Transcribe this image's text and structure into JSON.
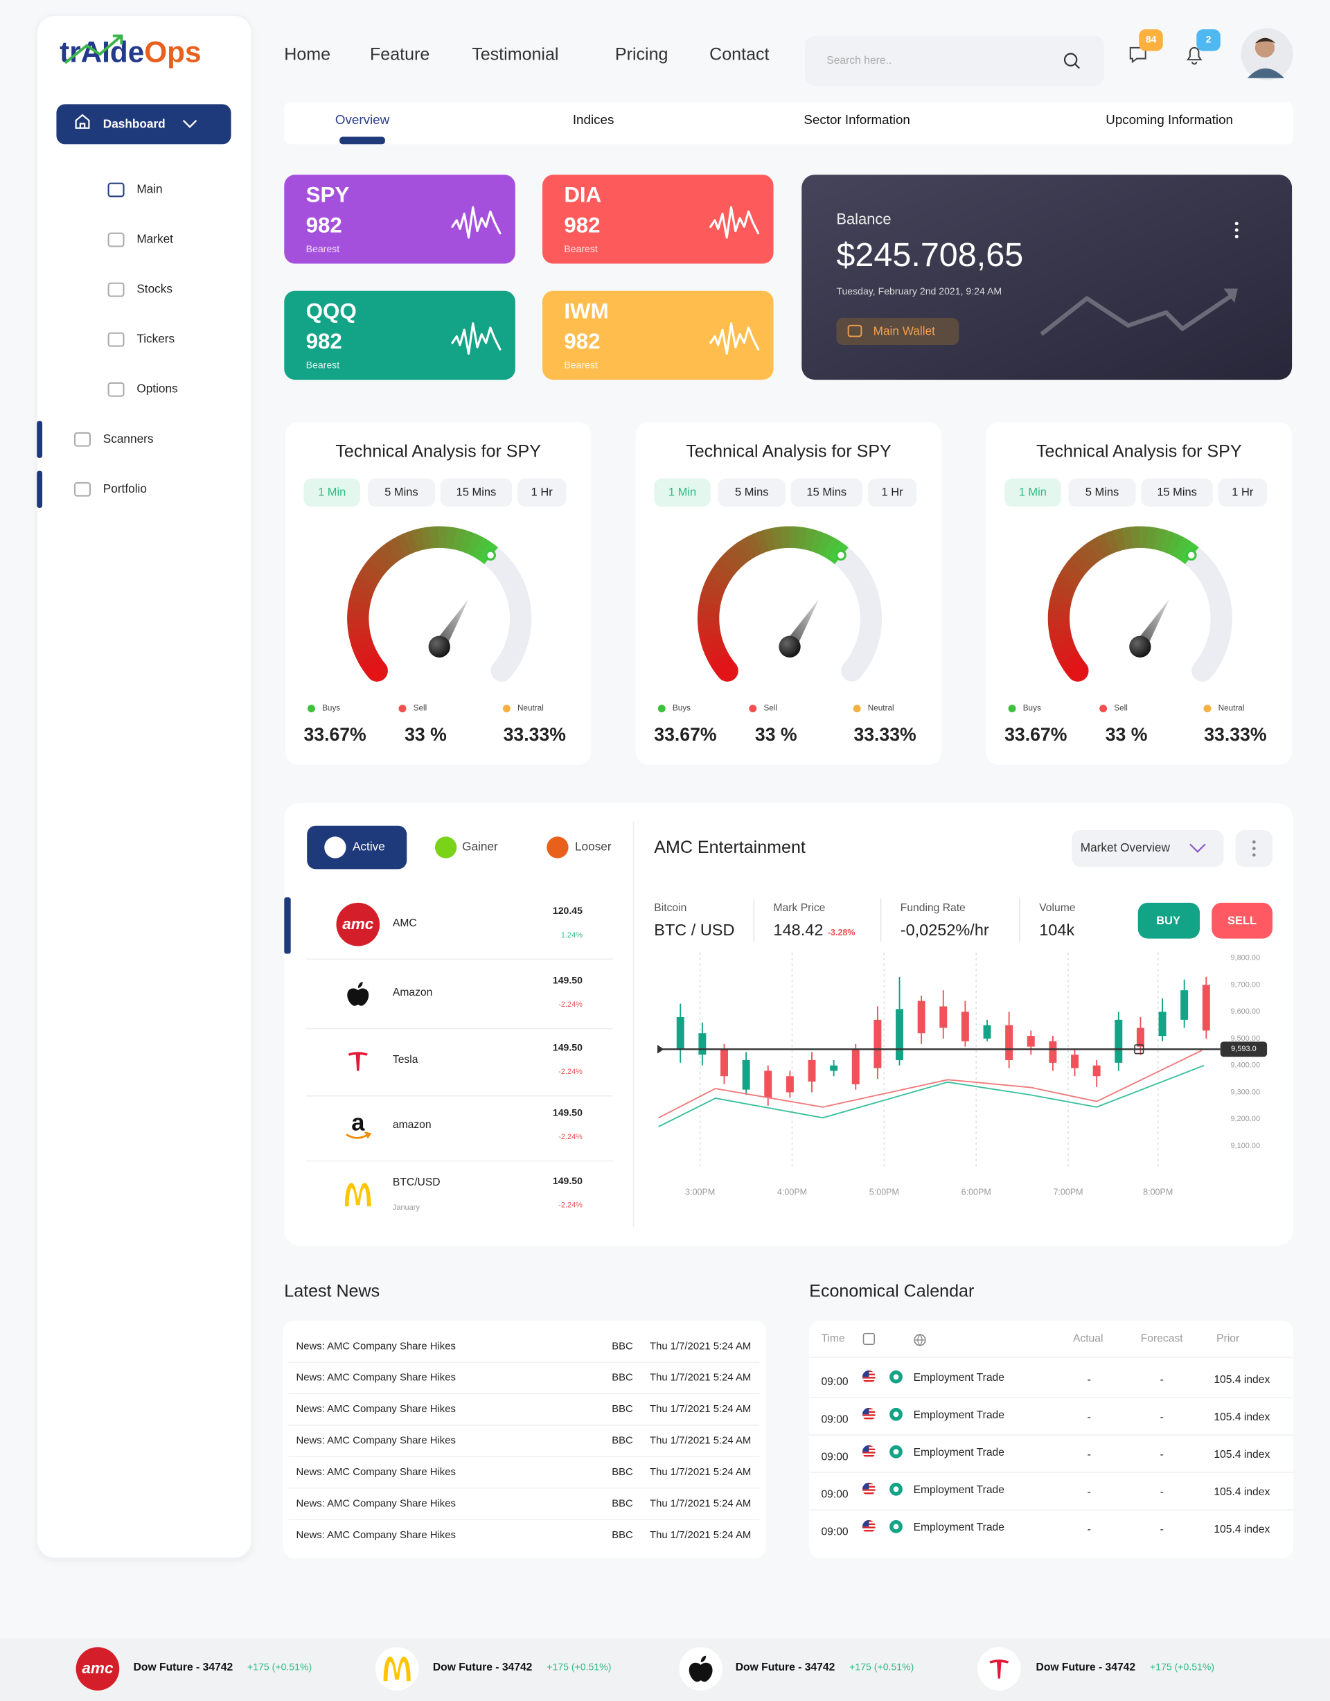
{
  "logo": [
    "trAIde",
    "Ops"
  ],
  "sidebar": {
    "dashboard": "Dashboard",
    "menu": [
      "Main",
      "Market",
      "Stocks",
      "Tickers",
      "Options"
    ],
    "sections": [
      "Scanners",
      "Portfolio"
    ]
  },
  "nav": [
    "Home",
    "Feature",
    "Testimonial",
    "Pricing",
    "Contact"
  ],
  "search_placeholder": "Search here..",
  "badges": {
    "messages": "84",
    "notifications": "2"
  },
  "tabs": [
    "Overview",
    "Indices",
    "Sector Information",
    "Upcoming Information"
  ],
  "tickers": [
    {
      "symbol": "SPY",
      "value": "982",
      "note": "Bearest",
      "color": "#a550dd"
    },
    {
      "symbol": "DIA",
      "value": "982",
      "note": "Bearest",
      "color": "#fd5b5b"
    },
    {
      "symbol": "QQQ",
      "value": "982",
      "note": "Bearest",
      "color": "#13a386"
    },
    {
      "symbol": "IWM",
      "value": "982",
      "note": "Bearest",
      "color": "#ffbd4d"
    }
  ],
  "balance": {
    "label": "Balance",
    "amount": "$245.708,65",
    "date": "Tuesday, February 2nd 2021, 9:24 AM",
    "button": "Main Wallet"
  },
  "analysis": [
    {
      "title": "Technical Analysis for SPY",
      "intervals": [
        "1 Min",
        "5 Mins",
        "15 Mins",
        "1 Hr"
      ],
      "legend": [
        {
          "label": "Buys",
          "value": "33.67%"
        },
        {
          "label": "Sell",
          "value": "33 %"
        },
        {
          "label": "Neutral",
          "value": "33.33%"
        }
      ]
    },
    {
      "title": "Technical Analysis for SPY",
      "intervals": [
        "1 Min",
        "5 Mins",
        "15 Mins",
        "1 Hr"
      ],
      "legend": [
        {
          "label": "Buys",
          "value": "33.67%"
        },
        {
          "label": "Sell",
          "value": "33 %"
        },
        {
          "label": "Neutral",
          "value": "33.33%"
        }
      ]
    },
    {
      "title": "Technical Analysis for SPY",
      "intervals": [
        "1 Min",
        "5 Mins",
        "15 Mins",
        "1 Hr"
      ],
      "legend": [
        {
          "label": "Buys",
          "value": "33.67%"
        },
        {
          "label": "Sell",
          "value": "33 %"
        },
        {
          "label": "Neutral",
          "value": "33.33%"
        }
      ]
    }
  ],
  "movers": {
    "tabs": [
      "Active",
      "Gainer",
      "Looser"
    ],
    "rows": [
      {
        "logo": "amc",
        "name": "AMC",
        "price": "120.45",
        "change": "1.24%"
      },
      {
        "name": "Amazon",
        "price": "149.50",
        "change": "-2.24%"
      },
      {
        "name": "Tesla",
        "price": "149.50",
        "change": "-2.24%"
      },
      {
        "logo": "a",
        "name": "amazon",
        "price": "149.50",
        "change": "-2.24%"
      },
      {
        "name": "BTC/USD",
        "sub": "January",
        "price": "149.50",
        "change": "-2.24%"
      }
    ]
  },
  "market": {
    "title": "AMC Entertainment",
    "dropdown": "Market Overview",
    "stats": [
      {
        "label": "Bitcoin",
        "value": "BTC / USD"
      },
      {
        "label": "Mark Price",
        "value": "148.42",
        "change": "-3.28%"
      },
      {
        "label": "Funding Rate",
        "value": "-0,0252%/hr"
      },
      {
        "label": "Volume",
        "value": "104k"
      }
    ],
    "buy": "BUY",
    "sell": "SELL",
    "last_price_label": "9,593.0",
    "chart": {
      "type": "candlestick",
      "ylim": [
        9020,
        9820
      ],
      "yticks": [
        {
          "value": 9800,
          "label": "9,800.00"
        },
        {
          "value": 9700,
          "label": "9,700.00"
        },
        {
          "value": 9600,
          "label": "9,600.00"
        },
        {
          "value": 9500,
          "label": "9,500.00"
        },
        {
          "value": 9400,
          "label": "9,400.00"
        },
        {
          "value": 9300,
          "label": "9,300.00"
        },
        {
          "value": 9200,
          "label": "9,200.00"
        },
        {
          "value": 9100,
          "label": "9,100.00"
        }
      ],
      "xlim": [
        -1.2,
        24.3
      ],
      "xticks": [
        {
          "value": 0.9,
          "label": "3:00PM"
        },
        {
          "value": 5.1,
          "label": "4:00PM"
        },
        {
          "value": 9.3,
          "label": "5:00PM"
        },
        {
          "value": 13.5,
          "label": "6:00PM"
        },
        {
          "value": 17.7,
          "label": "7:00PM"
        },
        {
          "value": 21.8,
          "label": "8:00PM"
        }
      ],
      "up_color": "#13a386",
      "down_color": "#f0525a",
      "candles": [
        {
          "open": 9460,
          "close": 9580,
          "high": 9630,
          "low": 9410
        },
        {
          "open": 9440,
          "close": 9520,
          "high": 9560,
          "low": 9400
        },
        {
          "open": 9460,
          "close": 9360,
          "high": 9480,
          "low": 9330
        },
        {
          "open": 9310,
          "close": 9420,
          "high": 9450,
          "low": 9290
        },
        {
          "open": 9380,
          "close": 9280,
          "high": 9400,
          "low": 9250
        },
        {
          "open": 9360,
          "close": 9300,
          "high": 9380,
          "low": 9280
        },
        {
          "open": 9420,
          "close": 9340,
          "high": 9450,
          "low": 9300
        },
        {
          "open": 9380,
          "close": 9400,
          "high": 9420,
          "low": 9360
        },
        {
          "open": 9460,
          "close": 9330,
          "high": 9480,
          "low": 9310
        },
        {
          "open": 9570,
          "close": 9390,
          "high": 9620,
          "low": 9350
        },
        {
          "open": 9420,
          "close": 9610,
          "high": 9730,
          "low": 9400
        },
        {
          "open": 9640,
          "close": 9520,
          "high": 9660,
          "low": 9480
        },
        {
          "open": 9620,
          "close": 9540,
          "high": 9680,
          "low": 9500
        },
        {
          "open": 9600,
          "close": 9490,
          "high": 9640,
          "low": 9470
        },
        {
          "open": 9500,
          "close": 9550,
          "high": 9570,
          "low": 9490
        },
        {
          "open": 9550,
          "close": 9420,
          "high": 9600,
          "low": 9390
        },
        {
          "open": 9510,
          "close": 9470,
          "high": 9530,
          "low": 9440
        },
        {
          "open": 9490,
          "close": 9410,
          "high": 9510,
          "low": 9380
        },
        {
          "open": 9440,
          "close": 9390,
          "high": 9460,
          "low": 9360
        },
        {
          "open": 9400,
          "close": 9360,
          "high": 9420,
          "low": 9320
        },
        {
          "open": 9410,
          "close": 9570,
          "high": 9600,
          "low": 9380
        },
        {
          "open": 9540,
          "close": 9470,
          "high": 9580,
          "low": 9440
        },
        {
          "open": 9510,
          "close": 9600,
          "high": 9650,
          "low": 9490
        },
        {
          "open": 9570,
          "close": 9680,
          "high": 9720,
          "low": 9540
        },
        {
          "open": 9700,
          "close": 9530,
          "high": 9730,
          "low": 9500
        }
      ],
      "lines": [
        {
          "color": "#f07a7a",
          "x": [
            -1,
            1.6,
            6.5,
            12.2,
            16,
            19,
            23.8
          ],
          "values": [
            9205,
            9314,
            9245,
            9347,
            9318,
            9266,
            9456
          ]
        },
        {
          "color": "#3cc0a0",
          "x": [
            -1,
            1.6,
            6.5,
            12.2,
            16,
            19,
            23.9
          ],
          "values": [
            9172,
            9278,
            9205,
            9338,
            9290,
            9245,
            9400
          ]
        }
      ]
    }
  },
  "news": {
    "title": "Latest News",
    "rows": [
      [
        "News: AMC Company Share Hikes",
        "BBC",
        "Thu 1/7/2021 5:24 AM"
      ],
      [
        "News: AMC Company Share Hikes",
        "BBC",
        "Thu 1/7/2021 5:24 AM"
      ],
      [
        "News: AMC Company Share Hikes",
        "BBC",
        "Thu 1/7/2021 5:24 AM"
      ],
      [
        "News: AMC Company Share Hikes",
        "BBC",
        "Thu 1/7/2021 5:24 AM"
      ],
      [
        "News: AMC Company Share Hikes",
        "BBC",
        "Thu 1/7/2021 5:24 AM"
      ],
      [
        "News: AMC Company Share Hikes",
        "BBC",
        "Thu 1/7/2021 5:24 AM"
      ],
      [
        "News: AMC Company Share Hikes",
        "BBC",
        "Thu 1/7/2021 5:24 AM"
      ]
    ]
  },
  "calendar": {
    "title": "Economical Calendar",
    "columns": [
      "Time",
      "Actual",
      "Forecast",
      "Prior"
    ],
    "rows": [
      [
        "09:00",
        "Employment Trade",
        "-",
        "-",
        "105.4 index"
      ],
      [
        "09:00",
        "Employment Trade",
        "-",
        "-",
        "105.4 index"
      ],
      [
        "09:00",
        "Employment Trade",
        "-",
        "-",
        "105.4 index"
      ],
      [
        "09:00",
        "Employment Trade",
        "-",
        "-",
        "105.4 index"
      ],
      [
        "09:00",
        "Employment Trade",
        "-",
        "-",
        "105.4 index"
      ]
    ]
  },
  "footer": [
    {
      "logo": "amc",
      "text": "Dow Future - 34742",
      "change": "+175 (+0.51%)"
    },
    {
      "text": "Dow Future - 34742",
      "change": "+175 (+0.51%)"
    },
    {
      "text": "Dow Future - 34742",
      "change": "+175 (+0.51%)"
    },
    {
      "text": "Dow Future - 34742",
      "change": "+175 (+0.51%)"
    }
  ]
}
